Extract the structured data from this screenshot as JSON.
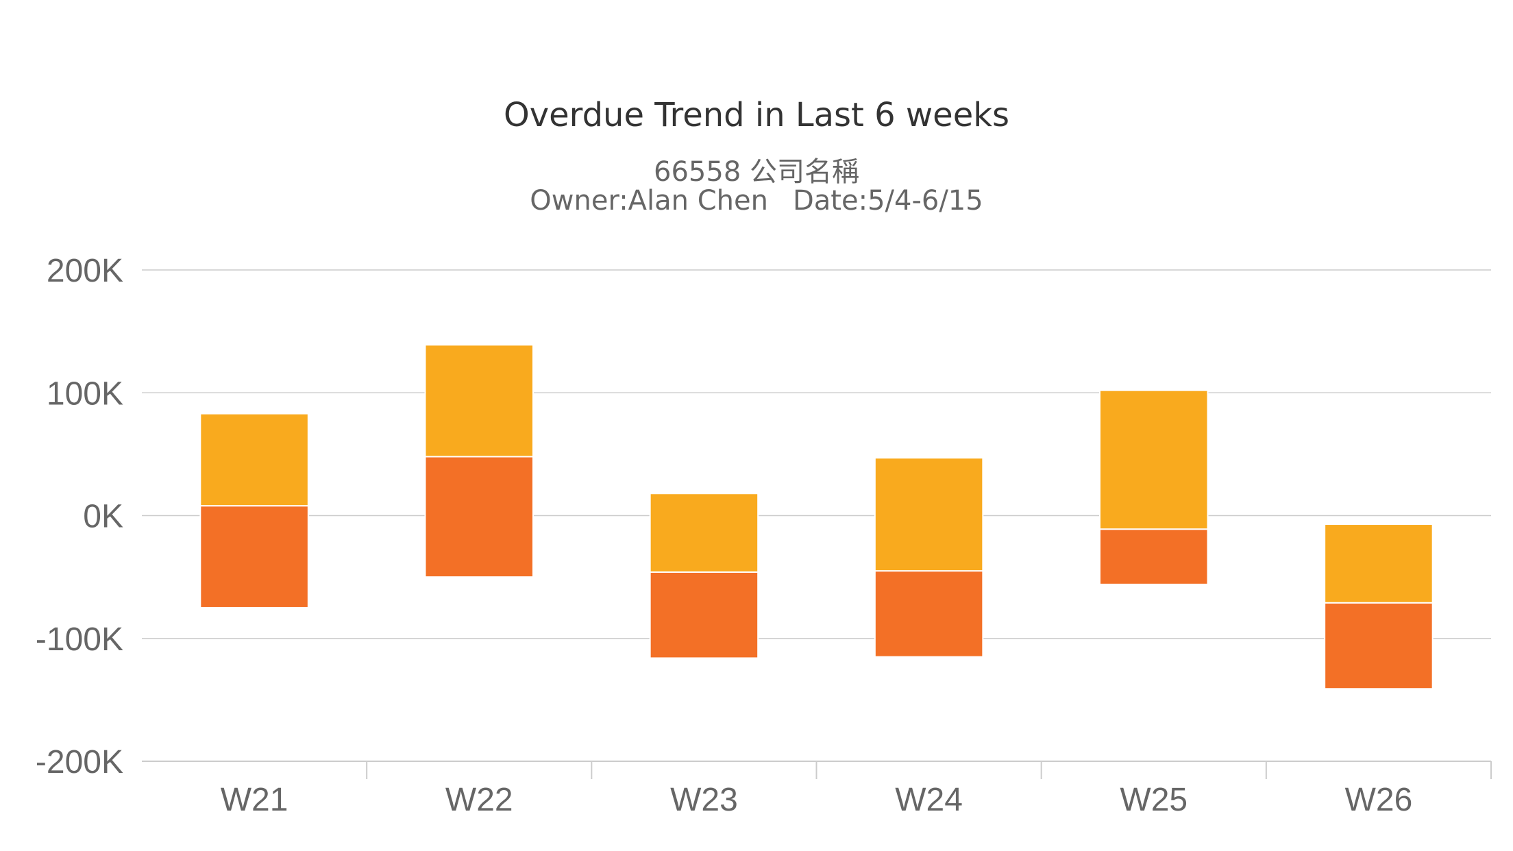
{
  "chart_data": {
    "type": "bar",
    "title": "Overdue Trend in Last 6 weeks",
    "subtitle_line1": "66558 公司名稱",
    "subtitle_owner": "Owner:Alan Chen",
    "subtitle_date": "Date:5/4-6/15",
    "categories": [
      "W21",
      "W22",
      "W23",
      "W24",
      "W25",
      "W26"
    ],
    "series": [
      {
        "color": "#f37026",
        "low": [
          -75,
          -50,
          -116,
          -115,
          -56,
          -141
        ],
        "high": [
          8,
          48,
          -46,
          -45,
          -11,
          -71
        ]
      },
      {
        "color": "#f9aa1e",
        "low": [
          8,
          48,
          -46,
          -45,
          -11,
          -71
        ],
        "high": [
          83,
          139,
          18,
          47,
          102,
          -7
        ]
      }
    ],
    "ylim": [
      -200,
      200
    ],
    "yticks": [
      200,
      100,
      0,
      -100,
      -200
    ],
    "ytick_labels": [
      "200K",
      "100K",
      "0K",
      "-100K",
      "-200K"
    ],
    "grid": true,
    "xlabel": "",
    "ylabel": ""
  }
}
